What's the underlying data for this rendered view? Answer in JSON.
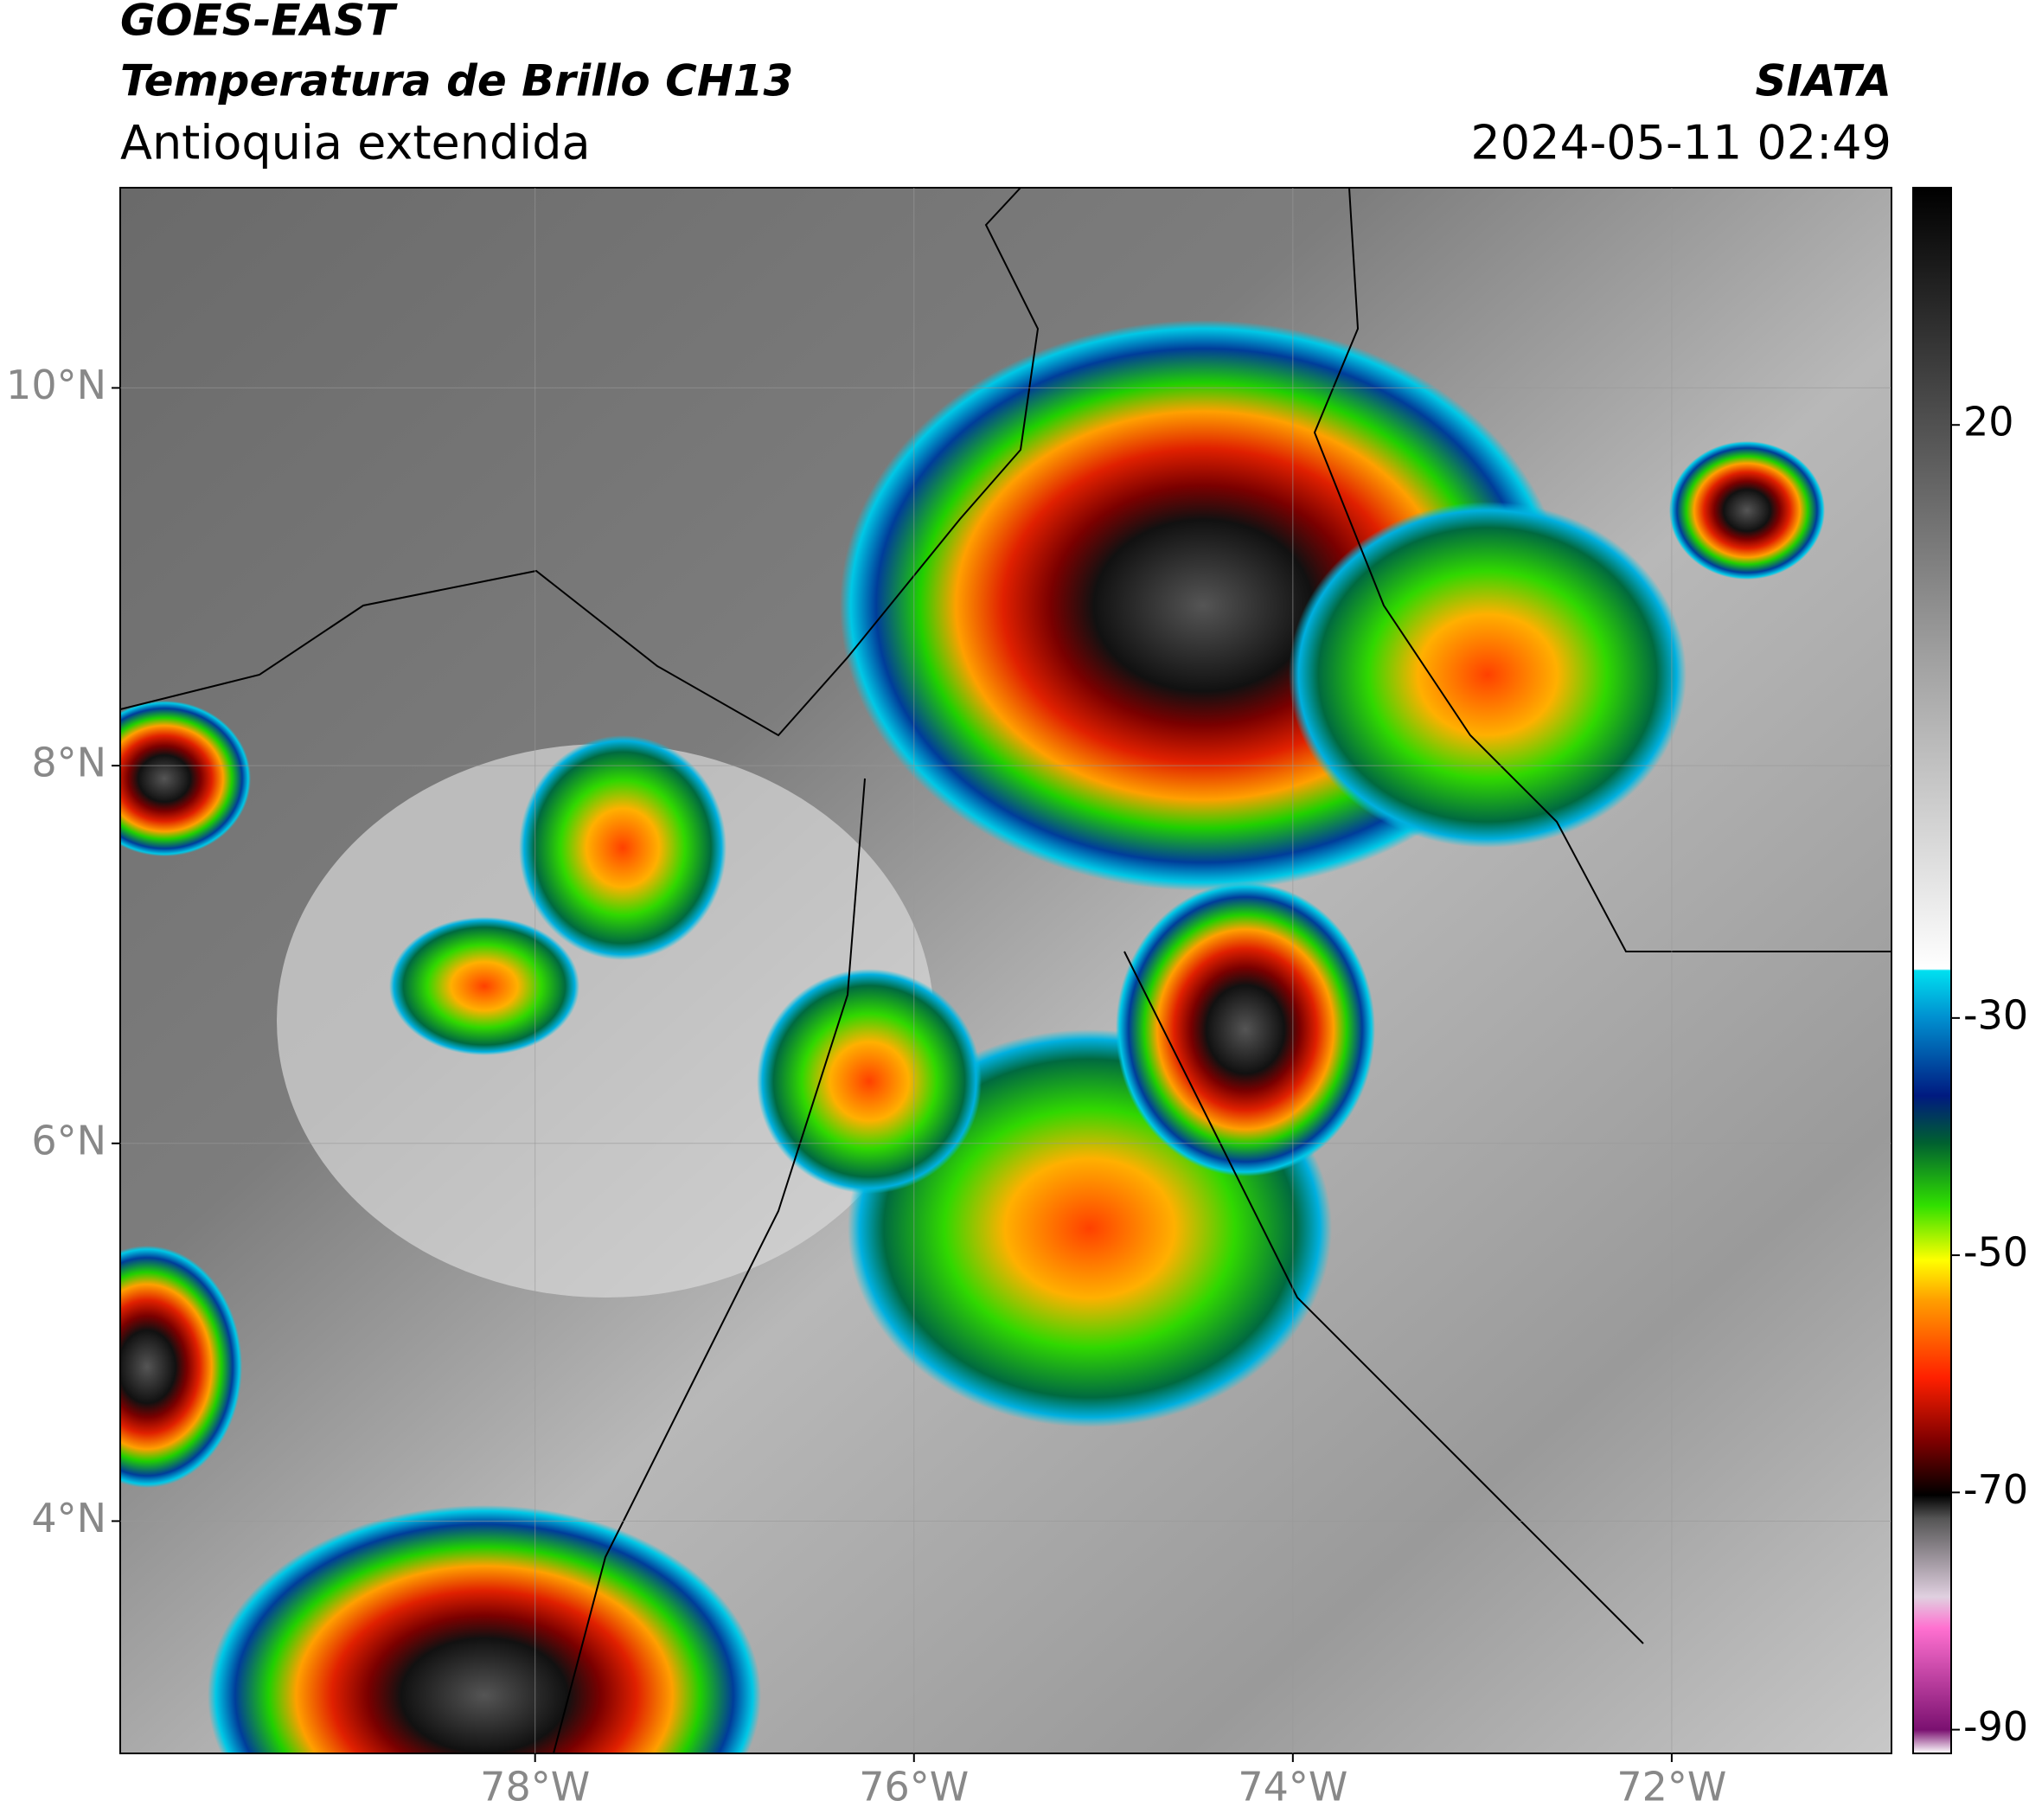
{
  "header": {
    "title": "GOES-EAST",
    "subtitle": "Temperatura de Brillo CH13",
    "region": "Antioquia extendida",
    "source": "SIATA",
    "datetime": "2024-05-11 02:49"
  },
  "map": {
    "xlim": [
      -80.19,
      -70.84
    ],
    "ylim": [
      2.77,
      11.06
    ],
    "xticks": [
      {
        "value": -78,
        "label": "78°W"
      },
      {
        "value": -76,
        "label": "76°W"
      },
      {
        "value": -74,
        "label": "74°W"
      },
      {
        "value": -72,
        "label": "72°W"
      }
    ],
    "yticks": [
      {
        "value": 10,
        "label": "10°N"
      },
      {
        "value": 8,
        "label": "8°N"
      },
      {
        "value": 6,
        "label": "6°N"
      },
      {
        "value": 4,
        "label": "4°N"
      }
    ],
    "grid": true
  },
  "colorbar": {
    "clim": [
      -92,
      40
    ],
    "ticks": [
      20,
      -30,
      -50,
      -70,
      -90
    ]
  }
}
